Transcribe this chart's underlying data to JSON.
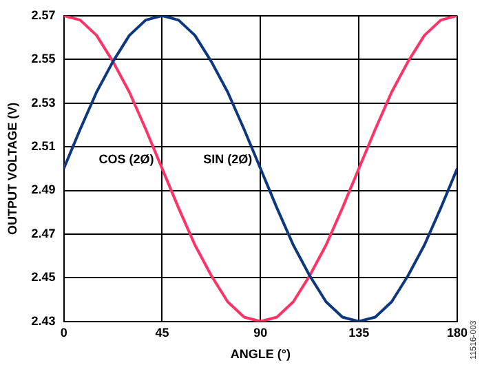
{
  "chart_data": {
    "type": "line",
    "xlabel": "ANGLE (°)",
    "ylabel": "OUTPUT VOLTAGE (V)",
    "x": [
      0,
      7.5,
      15,
      22.5,
      30,
      37.5,
      45,
      52.5,
      60,
      67.5,
      75,
      82.5,
      90,
      97.5,
      105,
      112.5,
      120,
      127.5,
      135,
      142.5,
      150,
      157.5,
      165,
      172.5,
      180
    ],
    "series": [
      {
        "name": "SIN (2Ø)",
        "color": "#0d3880",
        "values": [
          2.5,
          2.518,
          2.535,
          2.549,
          2.561,
          2.568,
          2.57,
          2.568,
          2.561,
          2.549,
          2.535,
          2.518,
          2.5,
          2.482,
          2.465,
          2.451,
          2.439,
          2.432,
          2.43,
          2.432,
          2.439,
          2.451,
          2.465,
          2.482,
          2.5
        ]
      },
      {
        "name": "COS (2Ø)",
        "color": "#ff3366",
        "values": [
          2.57,
          2.568,
          2.561,
          2.549,
          2.535,
          2.518,
          2.5,
          2.482,
          2.465,
          2.451,
          2.439,
          2.432,
          2.43,
          2.432,
          2.439,
          2.451,
          2.465,
          2.482,
          2.5,
          2.518,
          2.535,
          2.549,
          2.561,
          2.568,
          2.57
        ]
      }
    ],
    "xlim": [
      0,
      180
    ],
    "xticks": [
      0,
      45,
      90,
      135,
      180
    ],
    "ylim": [
      2.43,
      2.57
    ],
    "yticks": [
      2.43,
      2.45,
      2.47,
      2.49,
      2.51,
      2.53,
      2.55,
      2.57
    ],
    "grid": true,
    "legend": false,
    "marker": "none",
    "line_style": "solid",
    "annotations": [
      "11516-003"
    ]
  }
}
